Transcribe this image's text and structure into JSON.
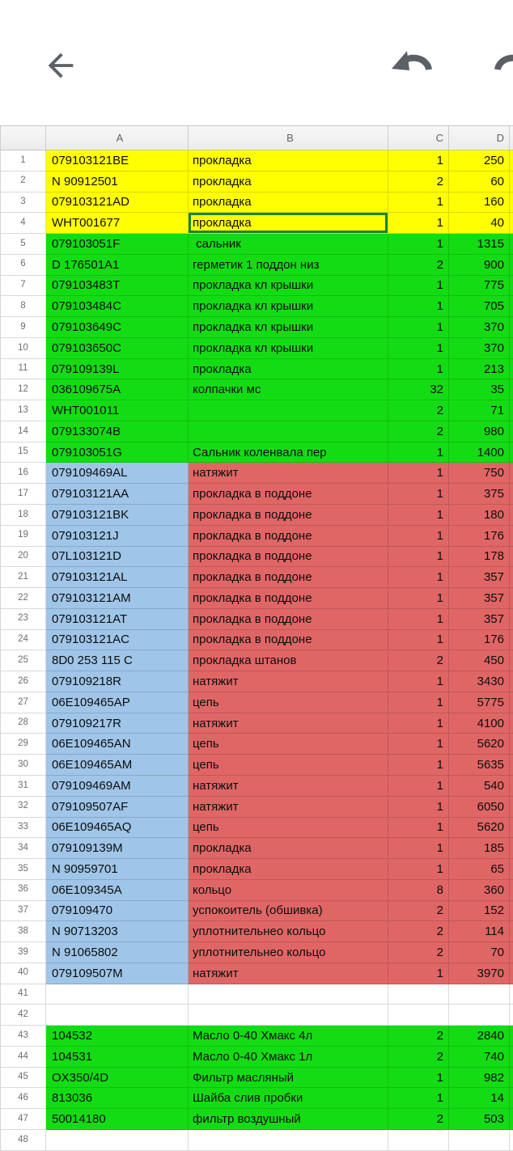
{
  "toolbar": {
    "back_icon": "back-arrow",
    "undo_icon": "undo-arrow",
    "redo_icon": "redo-arrow",
    "icon_color": "#5a6065"
  },
  "sheet": {
    "column_headers": [
      "A",
      "B",
      "C",
      "D"
    ],
    "selected_cell": "B4",
    "fill_colors": {
      "yellow": "#ffff00",
      "green": "#14dc14",
      "blue": "#9fc5e8",
      "red": "#e06666",
      "white": "#ffffff",
      "selection_border": "#17833b"
    },
    "rows": [
      {
        "n": "1",
        "a": "079103121BE",
        "b": "прокладка",
        "c": "1",
        "d": "250",
        "fill": "yellow"
      },
      {
        "n": "2",
        "a": "N 90912501",
        "b": "прокладка",
        "c": "2",
        "d": "60",
        "fill": "yellow"
      },
      {
        "n": "3",
        "a": "079103121AD",
        "b": "прокладка",
        "c": "1",
        "d": "160",
        "fill": "yellow"
      },
      {
        "n": "4",
        "a": "WHT001677",
        "b": "прокладка",
        "c": "1",
        "d": "40",
        "fill": "yellow",
        "selected": "b"
      },
      {
        "n": "5",
        "a": "079103051F",
        "b": " сальник",
        "c": "1",
        "d": "1315",
        "fill": "green"
      },
      {
        "n": "6",
        "a": "D 176501A1",
        "b": "герметик 1 поддон низ",
        "c": "2",
        "d": "900",
        "fill": "green"
      },
      {
        "n": "7",
        "a": "079103483T",
        "b": "прокладка кл крышки",
        "c": "1",
        "d": "775",
        "fill": "green"
      },
      {
        "n": "8",
        "a": "079103484C",
        "b": "прокладка кл крышки",
        "c": "1",
        "d": "705",
        "fill": "green"
      },
      {
        "n": "9",
        "a": "079103649C",
        "b": "прокладка кл крышки",
        "c": "1",
        "d": "370",
        "fill": "green"
      },
      {
        "n": "10",
        "a": "079103650C",
        "b": "прокладка кл крышки",
        "c": "1",
        "d": "370",
        "fill": "green"
      },
      {
        "n": "11",
        "a": "079109139L",
        "b": "прокладка",
        "c": "1",
        "d": "213",
        "fill": "green"
      },
      {
        "n": "12",
        "a": "036109675A",
        "b": "колпачки мс",
        "c": "32",
        "d": "35",
        "fill": "green"
      },
      {
        "n": "13",
        "a": "WHT001011",
        "b": "",
        "c": "2",
        "d": "71",
        "fill": "green"
      },
      {
        "n": "14",
        "a": "079133074B",
        "b": "",
        "c": "2",
        "d": "980",
        "fill": "green"
      },
      {
        "n": "15",
        "a": "079103051G",
        "b": "Сальник коленвала пер",
        "c": "1",
        "d": "1400",
        "fill": "green"
      },
      {
        "n": "16",
        "a": "079109469AL",
        "b": "натяжит",
        "c": "1",
        "d": "750",
        "fill": "mix"
      },
      {
        "n": "17",
        "a": "079103121AA",
        "b": "прокладка в поддоне",
        "c": "1",
        "d": "375",
        "fill": "mix"
      },
      {
        "n": "18",
        "a": "079103121BK",
        "b": "прокладка в поддоне",
        "c": "1",
        "d": "180",
        "fill": "mix"
      },
      {
        "n": "19",
        "a": "079103121J",
        "b": "прокладка в поддоне",
        "c": "1",
        "d": "176",
        "fill": "mix"
      },
      {
        "n": "20",
        "a": "07L103121D",
        "b": "прокладка в поддоне",
        "c": "1",
        "d": "178",
        "fill": "mix"
      },
      {
        "n": "21",
        "a": "079103121AL",
        "b": "прокладка в поддоне",
        "c": "1",
        "d": "357",
        "fill": "mix"
      },
      {
        "n": "22",
        "a": "079103121AM",
        "b": "прокладка в поддоне",
        "c": "1",
        "d": "357",
        "fill": "mix"
      },
      {
        "n": "23",
        "a": "079103121AT",
        "b": "прокладка в поддоне",
        "c": "1",
        "d": "357",
        "fill": "mix"
      },
      {
        "n": "24",
        "a": "079103121AC",
        "b": "прокладка в поддоне",
        "c": "1",
        "d": "176",
        "fill": "mix"
      },
      {
        "n": "25",
        "a": "8D0 253 115 C",
        "b": "прокладка штанов",
        "c": "2",
        "d": "450",
        "fill": "mix"
      },
      {
        "n": "26",
        "a": "079109218R",
        "b": "натяжит",
        "c": "1",
        "d": "3430",
        "fill": "mix"
      },
      {
        "n": "27",
        "a": "06E109465AP",
        "b": "цепь",
        "c": "1",
        "d": "5775",
        "fill": "mix"
      },
      {
        "n": "28",
        "a": "079109217R",
        "b": "натяжит",
        "c": "1",
        "d": "4100",
        "fill": "mix"
      },
      {
        "n": "29",
        "a": "06E109465AN",
        "b": "цепь",
        "c": "1",
        "d": "5620",
        "fill": "mix"
      },
      {
        "n": "30",
        "a": "06E109465AM",
        "b": "цепь",
        "c": "1",
        "d": "5635",
        "fill": "mix"
      },
      {
        "n": "31",
        "a": "079109469AM",
        "b": "натяжит",
        "c": "1",
        "d": "540",
        "fill": "mix"
      },
      {
        "n": "32",
        "a": "079109507AF",
        "b": "натяжит",
        "c": "1",
        "d": "6050",
        "fill": "mix"
      },
      {
        "n": "33",
        "a": "06E109465AQ",
        "b": "цепь",
        "c": "1",
        "d": "5620",
        "fill": "mix"
      },
      {
        "n": "34",
        "a": "079109139M",
        "b": "прокладка",
        "c": "1",
        "d": "185",
        "fill": "mix"
      },
      {
        "n": "35",
        "a": "N 90959701",
        "b": "прокладка",
        "c": "1",
        "d": "65",
        "fill": "mix"
      },
      {
        "n": "36",
        "a": "06E109345A",
        "b": "кольцо",
        "c": "8",
        "d": "360",
        "fill": "mix"
      },
      {
        "n": "37",
        "a": "079109470",
        "b": "успокоитель (обшивка)",
        "c": "2",
        "d": "152",
        "fill": "mix"
      },
      {
        "n": "38",
        "a": "N 90713203",
        "b": "уплотнительнео кольцо",
        "c": "2",
        "d": "114",
        "fill": "mix"
      },
      {
        "n": "39",
        "a": "N 91065802",
        "b": "уплотнительнео кольцо",
        "c": "2",
        "d": "70",
        "fill": "mix"
      },
      {
        "n": "40",
        "a": "079109507M",
        "b": "натяжит",
        "c": "1",
        "d": "3970",
        "fill": "mix"
      },
      {
        "n": "41",
        "a": "",
        "b": "",
        "c": "",
        "d": "",
        "fill": "white"
      },
      {
        "n": "42",
        "a": "",
        "b": "",
        "c": "",
        "d": "",
        "fill": "white"
      },
      {
        "n": "43",
        "a": "104532",
        "b": "Масло 0-40 Хмакс 4л",
        "c": "2",
        "d": "2840",
        "fill": "green"
      },
      {
        "n": "44",
        "a": "104531",
        "b": "Масло 0-40 Хмакс 1л",
        "c": "2",
        "d": "740",
        "fill": "green"
      },
      {
        "n": "45",
        "a": "OX350/4D",
        "b": "Фильтр масляный",
        "c": "1",
        "d": "982",
        "fill": "green"
      },
      {
        "n": "46",
        "a": "813036",
        "b": "Шайба слив пробки",
        "c": "1",
        "d": "14",
        "fill": "green"
      },
      {
        "n": "47",
        "a": "50014180",
        "b": "фильтр воздушный",
        "c": "2",
        "d": "503",
        "fill": "green"
      },
      {
        "n": "48",
        "a": "",
        "b": "",
        "c": "",
        "d": "",
        "fill": "white"
      }
    ]
  }
}
